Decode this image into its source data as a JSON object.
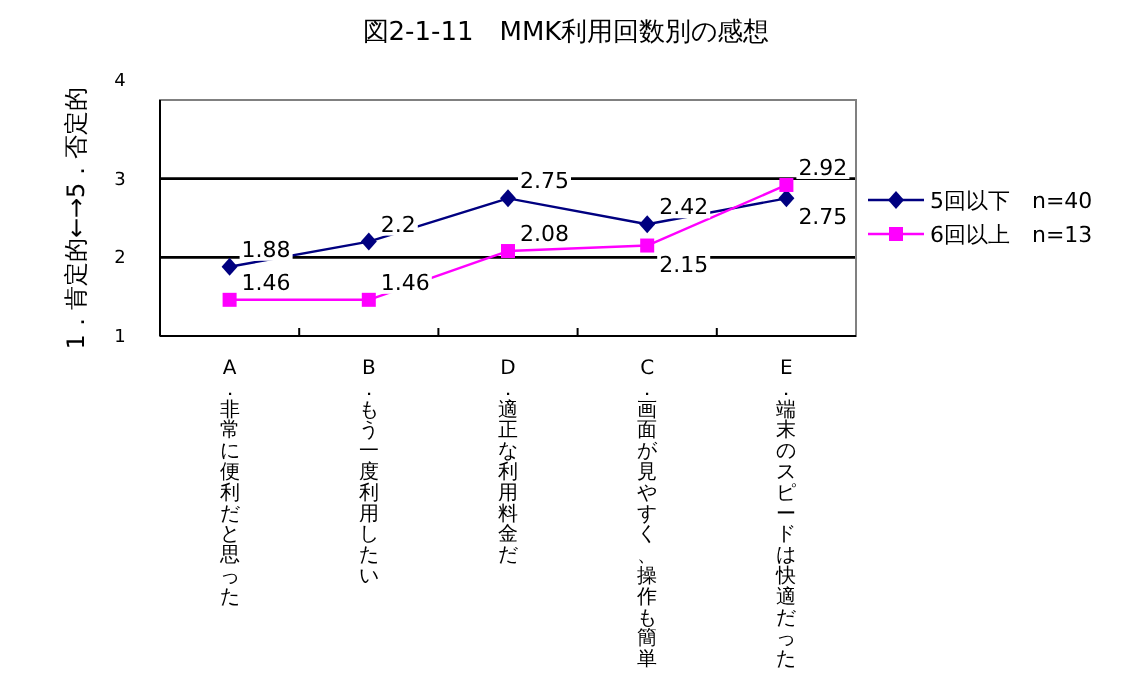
{
  "chart_data": {
    "type": "line",
    "title": "図2-1-11　MMK利用回数別の感想",
    "ylabel": "1．肯定的←→5．否定的",
    "categories": [
      "A．非常に便利だと思った",
      "B．もう一度利用したい",
      "D．適正な利用料金だ",
      "C．画面が見やすく、操作も簡単",
      "E．端末のスピードは快適だった"
    ],
    "series": [
      {
        "name": "5回以下　n=40",
        "color": "#000080",
        "marker": "diamond",
        "values": [
          1.88,
          2.2,
          2.75,
          2.42,
          2.75
        ]
      },
      {
        "name": "6回以上　n=13",
        "color": "#ff00ff",
        "marker": "square",
        "values": [
          1.46,
          1.46,
          2.08,
          2.15,
          2.92
        ]
      }
    ],
    "ylim": [
      1,
      4
    ],
    "yticks": [
      1,
      2,
      3,
      4
    ],
    "grid": "y",
    "legend": "right",
    "data_labels": true
  }
}
